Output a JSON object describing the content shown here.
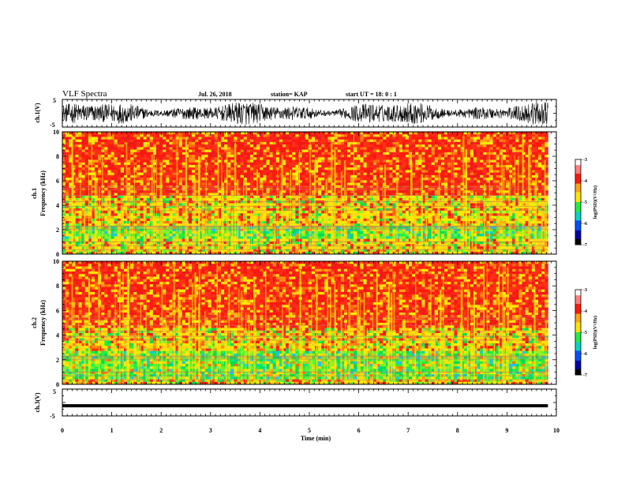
{
  "header": {
    "title": "VLF Spectra",
    "date": "Jul. 26, 2018",
    "station": "station= KAP",
    "start": "start UT = 18: 0 : 1"
  },
  "colors": {
    "trace": "#000000",
    "spectrogram_high": "#ff2a1a",
    "spectrogram_mid": "#ffe400",
    "spectrogram_low": "#22ee44"
  },
  "chart_data": [
    {
      "type": "line",
      "panel": "ch1-waveform",
      "ylabel": "ch.1(V)",
      "ylim": [
        -5,
        5
      ],
      "yticks": [
        "5",
        "-5"
      ],
      "xlim": [
        0,
        10
      ],
      "description_values": {
        "x_end_min": 9.83,
        "amplitude_range_V": [
          -4,
          4
        ]
      }
    },
    {
      "type": "heatmap",
      "panel": "ch1-spectrogram",
      "ylabel": "ch.1\nFrequency (kHz)",
      "ylabel_line1": "ch.1",
      "ylabel_line2": "Frequency (kHz)",
      "ylim": [
        0,
        10
      ],
      "yticks": [
        "0",
        "2",
        "4",
        "6",
        "8",
        "10"
      ],
      "xlim": [
        0,
        10
      ],
      "x_end_min": 9.83,
      "colorbar": {
        "label": "log(PSD)(V²/Hz)",
        "range": [
          -7,
          -3
        ],
        "ticks": [
          "-3",
          "-4",
          "-5",
          "-6",
          "-7"
        ]
      },
      "bands_khz": [
        {
          "range": [
            0,
            0.6
          ],
          "level": "mid"
        },
        {
          "range": [
            0.6,
            1.2
          ],
          "level": "mid-low"
        },
        {
          "range": [
            1.2,
            2.3
          ],
          "level": "low"
        },
        {
          "range": [
            2.3,
            4.8
          ],
          "level": "mid"
        },
        {
          "range": [
            4.8,
            10
          ],
          "level": "high"
        }
      ]
    },
    {
      "type": "heatmap",
      "panel": "ch2-spectrogram",
      "ylabel_line1": "ch.2",
      "ylabel_line2": "Frequency (kHz)",
      "ylim": [
        0,
        10
      ],
      "yticks": [
        "0",
        "2",
        "4",
        "6",
        "8",
        "10"
      ],
      "xlim": [
        0,
        10
      ],
      "x_end_min": 9.83,
      "colorbar": {
        "label": "log(PSD)(V²/Hz)",
        "range": [
          -7,
          -3
        ],
        "ticks": [
          "-3",
          "-4",
          "-5",
          "-6",
          "-7"
        ]
      },
      "bands_khz": [
        {
          "range": [
            0,
            0.5
          ],
          "level": "mid"
        },
        {
          "range": [
            0.5,
            2.8
          ],
          "level": "low"
        },
        {
          "range": [
            2.8,
            4.5
          ],
          "level": "mid"
        },
        {
          "range": [
            4.5,
            10
          ],
          "level": "high"
        }
      ]
    },
    {
      "type": "line",
      "panel": "ch3-waveform",
      "ylabel": "ch.3(V)",
      "ylim": [
        -5,
        5
      ],
      "yticks": [
        "5",
        "-5"
      ],
      "xlim": [
        0,
        10
      ],
      "description_values": {
        "x_end_min": 9.83,
        "constant_V": -1.2
      }
    }
  ],
  "xaxis": {
    "label": "Time (min)",
    "ticks": [
      "0",
      "1",
      "2",
      "3",
      "4",
      "5",
      "6",
      "7",
      "8",
      "9",
      "10"
    ]
  }
}
